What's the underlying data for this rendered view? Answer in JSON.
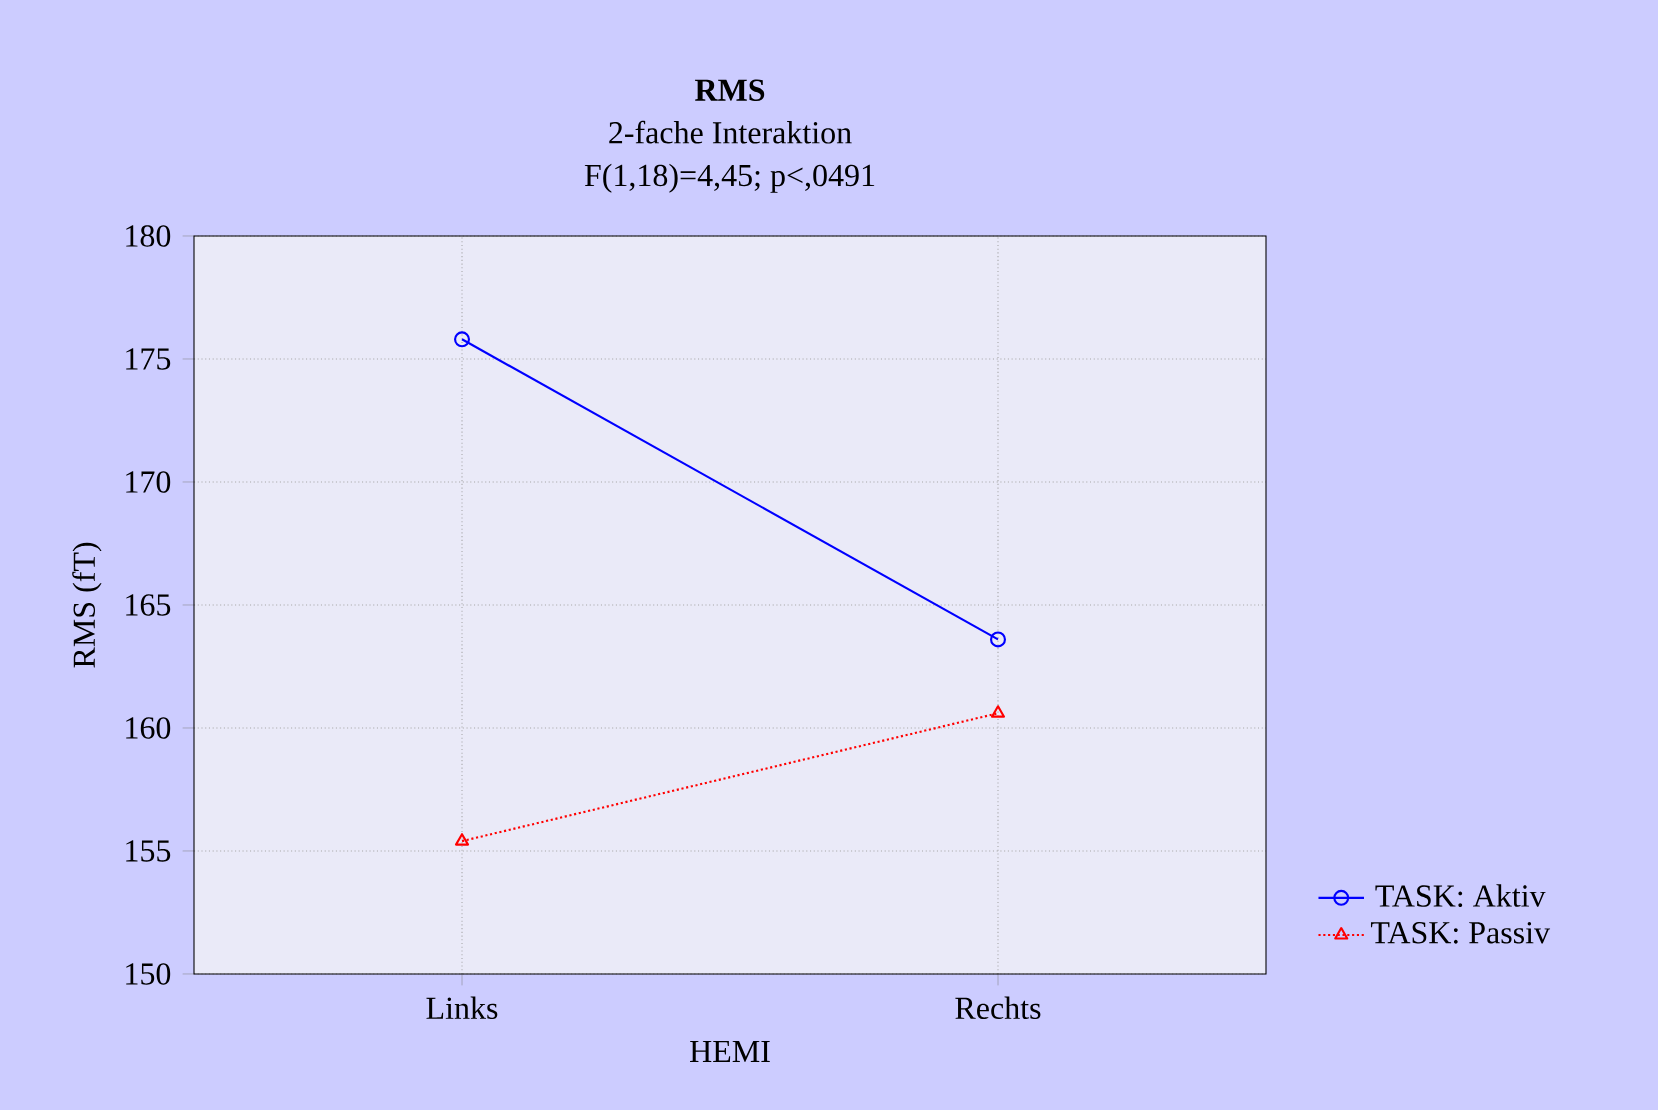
{
  "chart_data": {
    "type": "line",
    "title": "RMS",
    "subtitle": "2-fache Interaktion",
    "annotations": [
      "F(1,18)=4,45; p<,0491"
    ],
    "xlabel": "HEMI",
    "ylabel": "RMS (fT)",
    "categories": [
      "Links",
      "Rechts"
    ],
    "series": [
      {
        "name": "TASK: Aktiv",
        "color": "#0000ff",
        "marker": "circle",
        "line_style": "solid",
        "values": [
          175.8,
          163.6
        ]
      },
      {
        "name": "TASK: Passiv",
        "color": "#ff0000",
        "marker": "triangle",
        "line_style": "dotted",
        "values": [
          155.4,
          160.6
        ]
      }
    ],
    "ylim": [
      150,
      180
    ],
    "yticks": [
      150,
      155,
      160,
      165,
      170,
      175,
      180
    ],
    "grid": true,
    "legend": "bottom right"
  }
}
